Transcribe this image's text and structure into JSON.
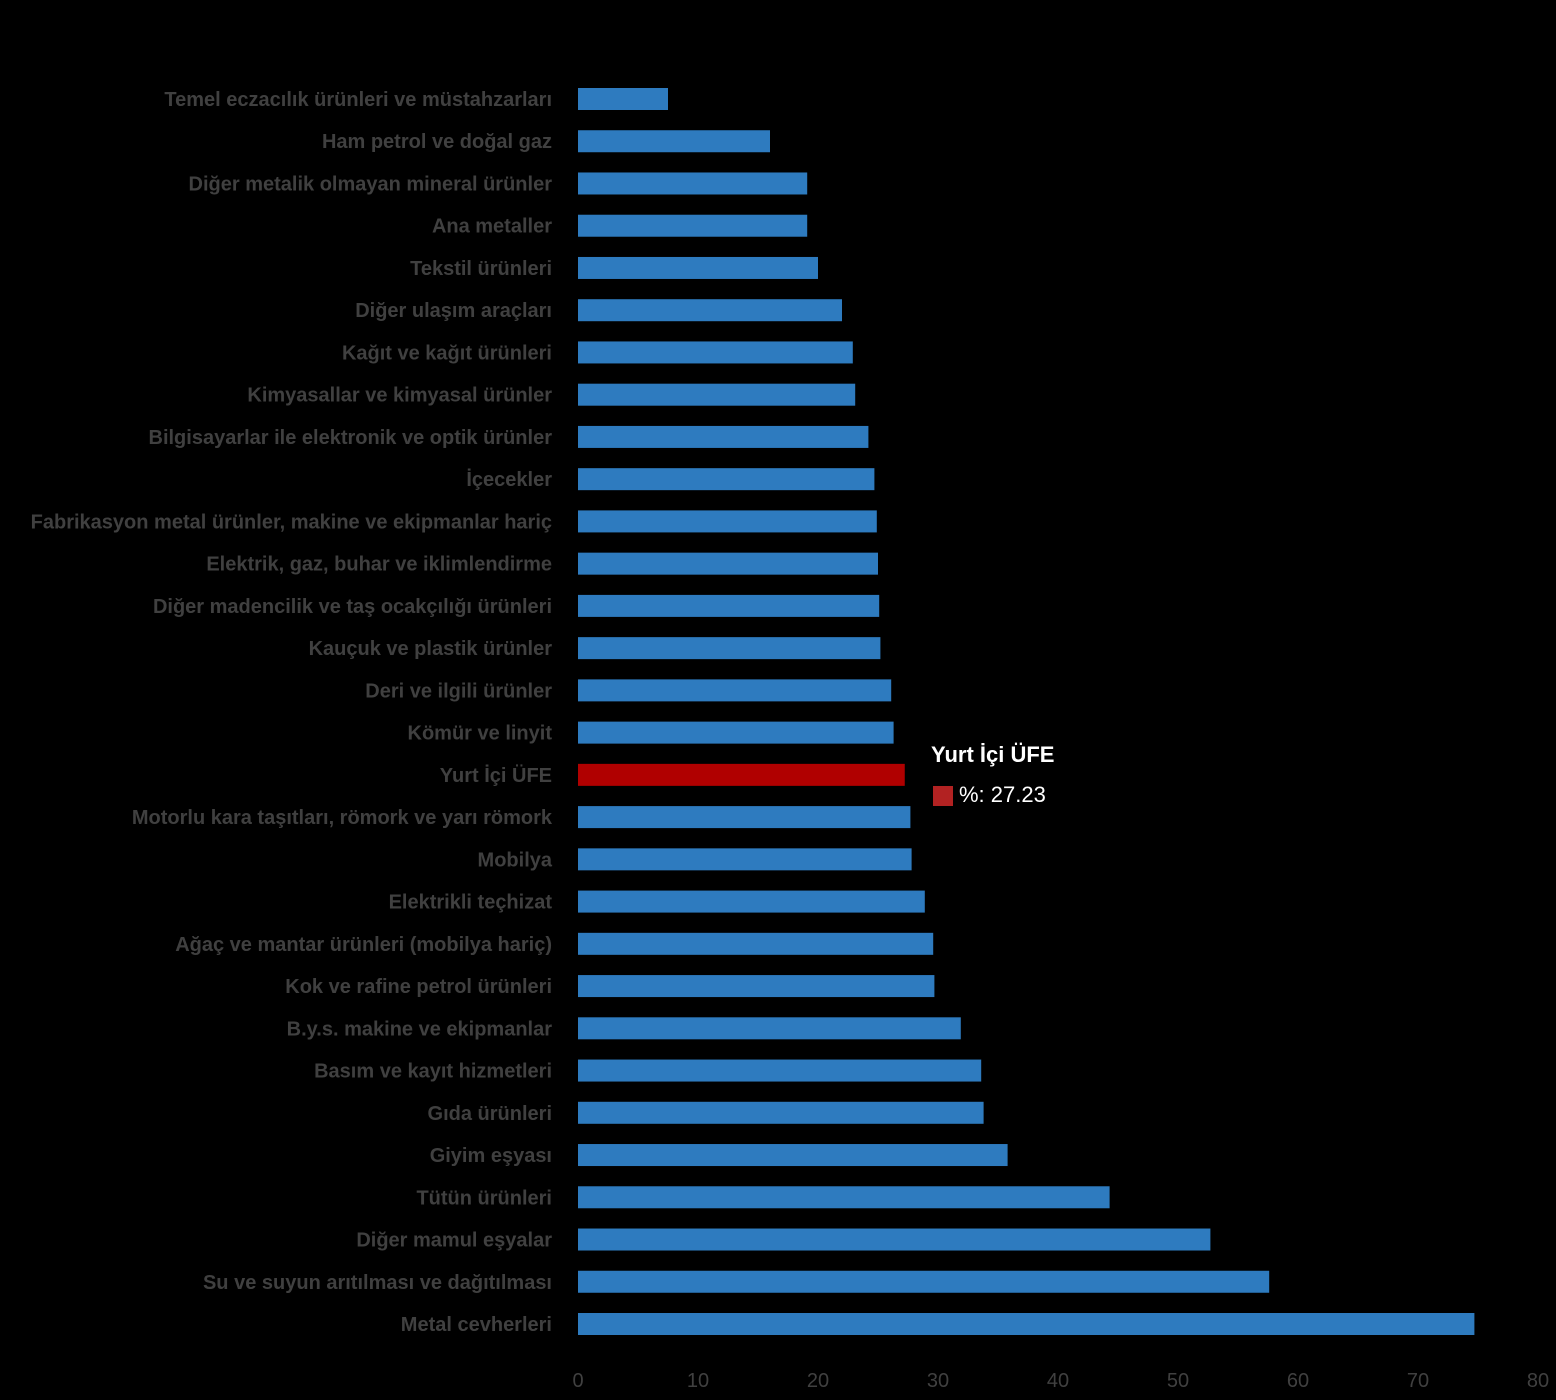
{
  "chart_data": {
    "type": "bar",
    "orientation": "horizontal",
    "categories": [
      "Temel eczacılık ürünleri ve müstahzarları",
      "Ham petrol ve doğal gaz",
      "Diğer metalik olmayan mineral ürünler",
      "Ana metaller",
      "Tekstil ürünleri",
      "Diğer ulaşım araçları",
      "Kağıt ve kağıt ürünleri",
      "Kimyasallar ve kimyasal ürünler",
      "Bilgisayarlar ile elektronik ve optik ürünler",
      "İçecekler",
      "Fabrikasyon metal ürünler, makine ve ekipmanlar hariç",
      "Elektrik, gaz, buhar ve iklimlendirme",
      "Diğer madencilik ve taş ocakçılığı ürünleri",
      "Kauçuk ve plastik ürünler",
      "Deri ve ilgili ürünler",
      "Kömür ve linyit",
      "Yurt İçi ÜFE",
      "Motorlu kara taşıtları, römork ve yarı römork",
      "Mobilya",
      "Elektrikli teçhizat",
      "Ağaç ve mantar ürünleri (mobilya hariç)",
      "Kok ve rafine petrol ürünleri",
      "B.y.s. makine ve ekipmanlar",
      "Basım ve kayıt hizmetleri",
      "Gıda ürünleri",
      "Giyim eşyası",
      "Tütün ürünleri",
      "Diğer mamul eşyalar",
      "Su ve suyun arıtılması ve dağıtılması",
      "Metal cevherleri"
    ],
    "values": [
      7.5,
      16.0,
      19.1,
      19.1,
      20.0,
      22.0,
      22.9,
      23.1,
      24.2,
      24.7,
      24.9,
      25.0,
      25.1,
      25.2,
      26.1,
      26.3,
      27.23,
      27.7,
      27.8,
      28.9,
      29.6,
      29.7,
      31.9,
      33.6,
      33.8,
      35.8,
      44.3,
      52.7,
      57.6,
      74.7
    ],
    "highlight_index": 16,
    "colors": {
      "default": "#2e7bbf",
      "highlight": "#b00000",
      "label": "#404040",
      "background": "#000000"
    },
    "xlim": [
      0,
      80
    ],
    "xticks": [
      0,
      10,
      20,
      30,
      40,
      50,
      60,
      70,
      80
    ],
    "grid": false,
    "tooltip": {
      "title": "Yurt İçi ÜFE",
      "value_text": "%: 27.23",
      "swatch_color": "#b22222"
    }
  }
}
